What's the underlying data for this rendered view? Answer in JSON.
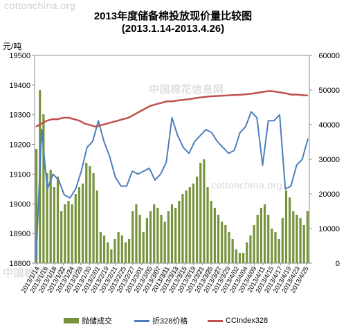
{
  "watermarks": [
    "cottonchina.org",
    "中国棉花信息网",
    "cottonchina.org",
    "中国棉花信息网",
    "中国棉花信息网"
  ],
  "chart_data": {
    "type": "bar",
    "title": "2013年度储备棉投放现价量比较图",
    "subtitle": "(2013.1.14-2013.4.26)",
    "ylabel": "元/吨",
    "ylim": [
      18800,
      19500
    ],
    "y2lim": [
      0,
      60000
    ],
    "y_ticks": [
      "19500",
      "19400",
      "19300",
      "19200",
      "19100",
      "19000",
      "18900",
      "18800"
    ],
    "y2_ticks": [
      "60000",
      "50000",
      "40000",
      "30000",
      "20000",
      "10000",
      "0"
    ],
    "x_tick_labels": [
      "2013/1/14",
      "2013/1/16",
      "2013/1/18",
      "2013/1/22",
      "2013/1/24",
      "2013/1/28",
      "2013/1/30",
      "2013/2/01",
      "2013/2/19",
      "2013/2/21",
      "2013/2/25",
      "2013/2/27",
      "2013/3/01",
      "2013/3/05",
      "2013/3/07",
      "2013/3/11",
      "2013/3/13",
      "2013/3/15",
      "2013/3/19",
      "2013/3/21",
      "2013/3/25",
      "2013/3/27",
      "2013/3/29",
      "2013/4/02",
      "2013/4/04",
      "2013/4/09",
      "2013/4/11",
      "2013/4/15",
      "2013/4/17",
      "2013/4/19",
      "2013/4/23",
      "2013/4/25"
    ],
    "series": [
      {
        "name": "抛储成交",
        "type": "bar",
        "axis": "right",
        "values": [
          33000,
          50000,
          43000,
          26000,
          27000,
          22000,
          25000,
          15000,
          17000,
          18000,
          17000,
          20000,
          22000,
          23000,
          29000,
          28000,
          26000,
          21000,
          9000,
          8000,
          6000,
          4000,
          7000,
          9000,
          8000,
          6000,
          7000,
          15000,
          17000,
          14000,
          9000,
          13000,
          15000,
          17000,
          16000,
          14000,
          12000,
          15000,
          17000,
          16000,
          18000,
          20000,
          21000,
          22000,
          23000,
          25000,
          29000,
          30000,
          22000,
          18000,
          16000,
          14000,
          12000,
          11000,
          9000,
          7000,
          4000,
          3000,
          3000,
          6000,
          8000,
          11000,
          14000,
          16000,
          17000,
          14000,
          10000,
          9000,
          7000,
          13000,
          21000,
          19000,
          15000,
          14000,
          13000,
          11000,
          15000
        ]
      },
      {
        "name": "折328价格",
        "type": "line",
        "axis": "left",
        "color": "#4a7ebb",
        "values": [
          18810,
          19250,
          19050,
          19100,
          19080,
          19030,
          19020,
          19050,
          19110,
          19190,
          19210,
          19280,
          19210,
          19160,
          19090,
          19060,
          19060,
          19110,
          19100,
          19110,
          19120,
          19080,
          19100,
          19140,
          19290,
          19230,
          19190,
          19170,
          19210,
          19230,
          19250,
          19240,
          19210,
          19190,
          19170,
          19180,
          19240,
          19260,
          19310,
          19290,
          19130,
          19280,
          19280,
          19300,
          19050,
          19060,
          19130,
          19150,
          19220
        ]
      },
      {
        "name": "CCIndex328",
        "type": "line",
        "axis": "left",
        "color": "#c0504d",
        "values": [
          19260,
          19270,
          19280,
          19285,
          19285,
          19290,
          19290,
          19285,
          19280,
          19270,
          19265,
          19260,
          19265,
          19270,
          19275,
          19280,
          19285,
          19290,
          19300,
          19310,
          19320,
          19330,
          19335,
          19340,
          19345,
          19345,
          19348,
          19350,
          19352,
          19355,
          19358,
          19360,
          19362,
          19363,
          19364,
          19365,
          19366,
          19367,
          19368,
          19370,
          19372,
          19375,
          19378,
          19380,
          19378,
          19375,
          19372,
          19368,
          19368,
          19366,
          19365
        ]
      }
    ],
    "legend_position": "bottom",
    "grid": false
  }
}
